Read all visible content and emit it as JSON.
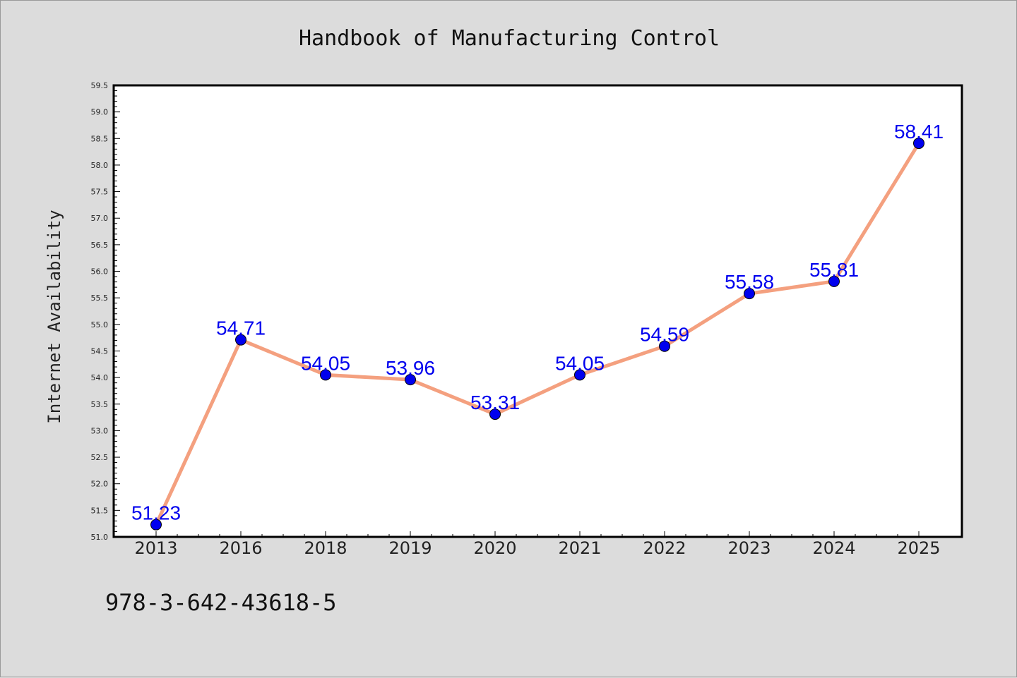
{
  "chart_data": {
    "type": "line",
    "title": "Handbook of Manufacturing Control",
    "xlabel": "",
    "ylabel": "Internet Availability",
    "categories": [
      "2013",
      "2016",
      "2018",
      "2019",
      "2020",
      "2021",
      "2022",
      "2023",
      "2024",
      "2025"
    ],
    "values": [
      51.23,
      54.71,
      54.05,
      53.96,
      53.31,
      54.05,
      54.59,
      55.58,
      55.81,
      58.41
    ],
    "data_labels": [
      "51.23",
      "54.71",
      "54.05",
      "53.96",
      "53.31",
      "54.05",
      "54.59",
      "55.58",
      "55.81",
      "58.41"
    ],
    "ylim": [
      51.0,
      59.5
    ],
    "yticks": [
      "51.0",
      "51.5",
      "52.0",
      "52.5",
      "53.0",
      "53.5",
      "54.0",
      "54.5",
      "55.0",
      "55.5",
      "56.0",
      "56.5",
      "57.0",
      "57.5",
      "58.0",
      "58.5",
      "59.0",
      "59.5"
    ],
    "grid": false,
    "line_color": "#f4a07f",
    "marker_color": "#0000ee",
    "label_color": "#0000ee",
    "plot_background": "#ffffff",
    "page_background": "#dcdcdc"
  },
  "footer": {
    "isbn": "978-3-642-43618-5"
  }
}
